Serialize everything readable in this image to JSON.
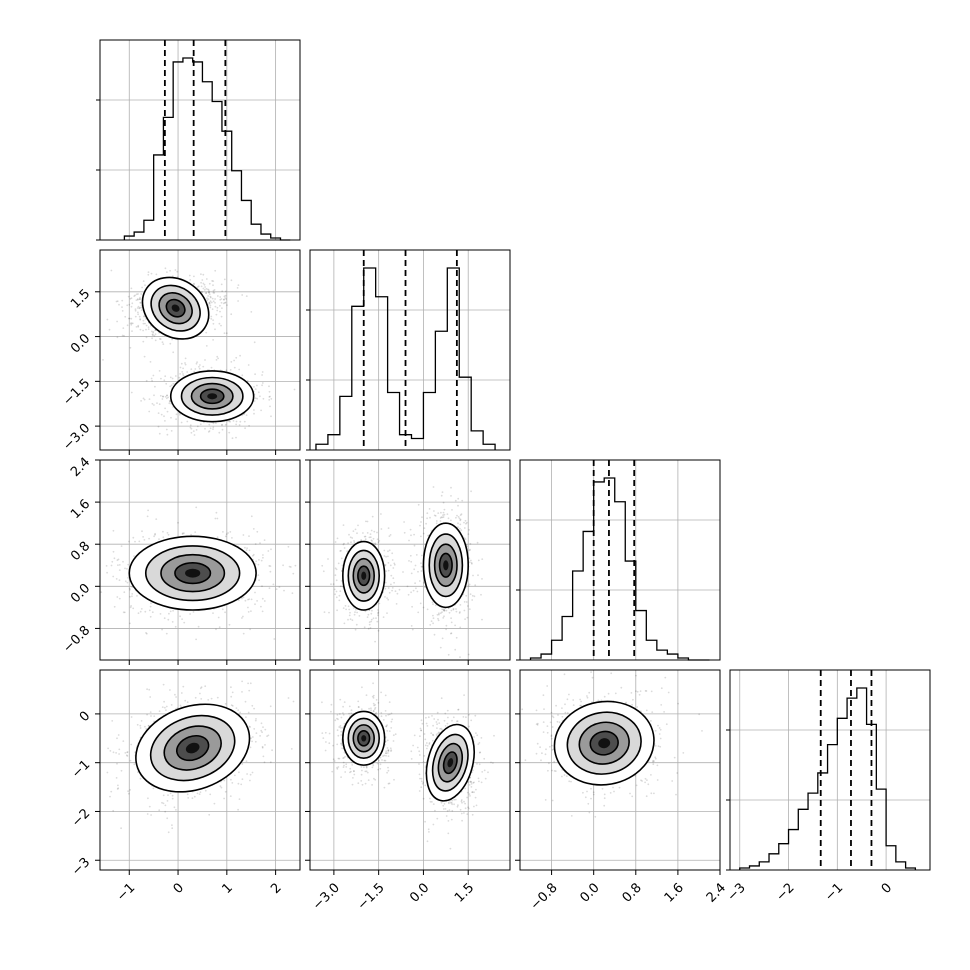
{
  "chart_data": {
    "type": "corner",
    "grid": true,
    "parameters": [
      {
        "ticks": [
          -1,
          0,
          1,
          2
        ],
        "tick_labels": [
          "−1",
          "0",
          "1",
          "2"
        ],
        "range": [
          -1.6,
          2.5
        ]
      },
      {
        "ticks": [
          -3.0,
          -1.5,
          0.0,
          1.5
        ],
        "tick_labels": [
          "−3.0",
          "−1.5",
          "0.0",
          "1.5"
        ],
        "range": [
          -3.8,
          2.9
        ]
      },
      {
        "ticks": [
          -0.8,
          0.0,
          0.8,
          1.6,
          2.4
        ],
        "tick_labels": [
          "−0.8",
          "0.0",
          "0.8",
          "1.6",
          "2.4"
        ],
        "range": [
          -1.4,
          2.4
        ]
      },
      {
        "ticks": [
          -3,
          -2,
          -1,
          0
        ],
        "tick_labels": [
          "−3",
          "−2",
          "−1",
          "0"
        ],
        "range": [
          -3.2,
          0.9
        ]
      }
    ],
    "histograms": [
      {
        "param": 0,
        "quantiles": [
          -0.27,
          0.32,
          0.97
        ],
        "bin_edges": [
          -1.1,
          -0.9,
          -0.7,
          -0.5,
          -0.3,
          -0.1,
          0.1,
          0.3,
          0.5,
          0.7,
          0.9,
          1.1,
          1.3,
          1.5,
          1.7,
          1.9,
          2.1,
          2.3
        ],
        "counts": [
          2,
          4,
          10,
          43,
          62,
          90,
          92,
          90,
          80,
          70,
          55,
          35,
          20,
          8,
          3,
          1,
          0
        ]
      },
      {
        "param": 1,
        "quantiles": [
          -2.0,
          -0.6,
          1.12
        ],
        "bin_edges": [
          -3.6,
          -3.2,
          -2.8,
          -2.4,
          -2.0,
          -1.6,
          -1.2,
          -0.8,
          -0.4,
          0.0,
          0.4,
          0.8,
          1.2,
          1.6,
          2.0,
          2.4
        ],
        "counts": [
          3,
          8,
          28,
          75,
          95,
          80,
          30,
          8,
          6,
          30,
          62,
          95,
          38,
          10,
          3
        ]
      },
      {
        "param": 2,
        "quantiles": [
          0.0,
          0.29,
          0.77
        ],
        "bin_edges": [
          -1.2,
          -1.0,
          -0.8,
          -0.6,
          -0.4,
          -0.2,
          0.0,
          0.2,
          0.4,
          0.6,
          0.8,
          1.0,
          1.2,
          1.4,
          1.6,
          1.8,
          2.0,
          2.2
        ],
        "counts": [
          1,
          3,
          10,
          22,
          45,
          65,
          90,
          92,
          80,
          50,
          25,
          10,
          5,
          3,
          1,
          0,
          0
        ]
      },
      {
        "param": 3,
        "quantiles": [
          -1.34,
          -0.72,
          -0.3
        ],
        "bin_edges": [
          -3.0,
          -2.8,
          -2.6,
          -2.4,
          -2.2,
          -2.0,
          -1.8,
          -1.6,
          -1.4,
          -1.2,
          -1.0,
          -0.8,
          -0.6,
          -0.4,
          -0.2,
          0.0,
          0.2,
          0.4,
          0.6
        ],
        "counts": [
          1,
          2,
          4,
          8,
          13,
          20,
          30,
          38,
          48,
          62,
          75,
          85,
          90,
          72,
          40,
          12,
          4,
          1
        ]
      }
    ],
    "pairs": [
      {
        "x": 0,
        "y": 1,
        "modes": [
          {
            "cx": -0.05,
            "cy": 0.95,
            "rx": 0.72,
            "ry": 0.95,
            "rot": -35
          },
          {
            "cx": 0.7,
            "cy": -2.0,
            "rx": 0.85,
            "ry": 0.85,
            "rot": 0
          }
        ]
      },
      {
        "x": 0,
        "y": 2,
        "modes": [
          {
            "cx": 0.3,
            "cy": 0.25,
            "rx": 1.3,
            "ry": 0.7,
            "rot": 0
          }
        ]
      },
      {
        "x": 1,
        "y": 2,
        "modes": [
          {
            "cx": -2.0,
            "cy": 0.2,
            "rx": 0.7,
            "ry": 0.65,
            "rot": 0
          },
          {
            "cx": 0.75,
            "cy": 0.4,
            "rx": 0.75,
            "ry": 0.8,
            "rot": 0
          }
        ]
      },
      {
        "x": 0,
        "y": 3,
        "modes": [
          {
            "cx": 0.3,
            "cy": -0.7,
            "rx": 1.2,
            "ry": 0.85,
            "rot": 20
          }
        ]
      },
      {
        "x": 1,
        "y": 3,
        "modes": [
          {
            "cx": -2.0,
            "cy": -0.5,
            "rx": 0.7,
            "ry": 0.55,
            "rot": 0
          },
          {
            "cx": 0.9,
            "cy": -1.0,
            "rx": 0.75,
            "ry": 0.8,
            "rot": -15
          }
        ]
      },
      {
        "x": 2,
        "y": 3,
        "modes": [
          {
            "cx": 0.2,
            "cy": -0.6,
            "rx": 0.95,
            "ry": 0.85,
            "rot": 10
          }
        ]
      }
    ]
  }
}
